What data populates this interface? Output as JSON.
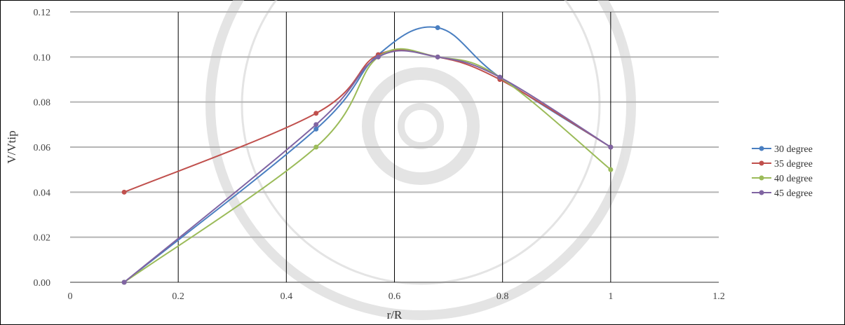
{
  "chart_data": {
    "type": "line",
    "xlabel": "r/R",
    "ylabel": "V/Vtip",
    "xlim": [
      0,
      1.2
    ],
    "ylim": [
      0,
      0.12
    ],
    "xticks": [
      "0",
      "0.2",
      "0.4",
      "0.6",
      "0.8",
      "1",
      "1.2"
    ],
    "yticks": [
      "0.00",
      "0.02",
      "0.04",
      "0.06",
      "0.08",
      "0.10",
      "0.12"
    ],
    "grid": true,
    "legend_position": "right",
    "series": [
      {
        "name": "30 degree",
        "color": "#4a7fc1",
        "x": [
          0.1,
          0.455,
          0.57,
          0.68,
          0.795,
          1.0
        ],
        "y": [
          0.0,
          0.068,
          0.101,
          0.113,
          0.091,
          0.06
        ]
      },
      {
        "name": "35 degree",
        "color": "#c0504d",
        "x": [
          0.1,
          0.455,
          0.57,
          0.68,
          0.795,
          1.0
        ],
        "y": [
          0.04,
          0.075,
          0.101,
          0.1,
          0.09,
          0.06
        ]
      },
      {
        "name": "40 degree",
        "color": "#9bbb59",
        "x": [
          0.1,
          0.455,
          0.57,
          0.68,
          0.795,
          1.0
        ],
        "y": [
          0.0,
          0.06,
          0.1,
          0.1,
          0.091,
          0.05
        ]
      },
      {
        "name": "45 degree",
        "color": "#8064a2",
        "x": [
          0.1,
          0.455,
          0.57,
          0.68,
          0.795,
          1.0
        ],
        "y": [
          0.0,
          0.07,
          0.1,
          0.1,
          0.091,
          0.06
        ]
      }
    ]
  }
}
